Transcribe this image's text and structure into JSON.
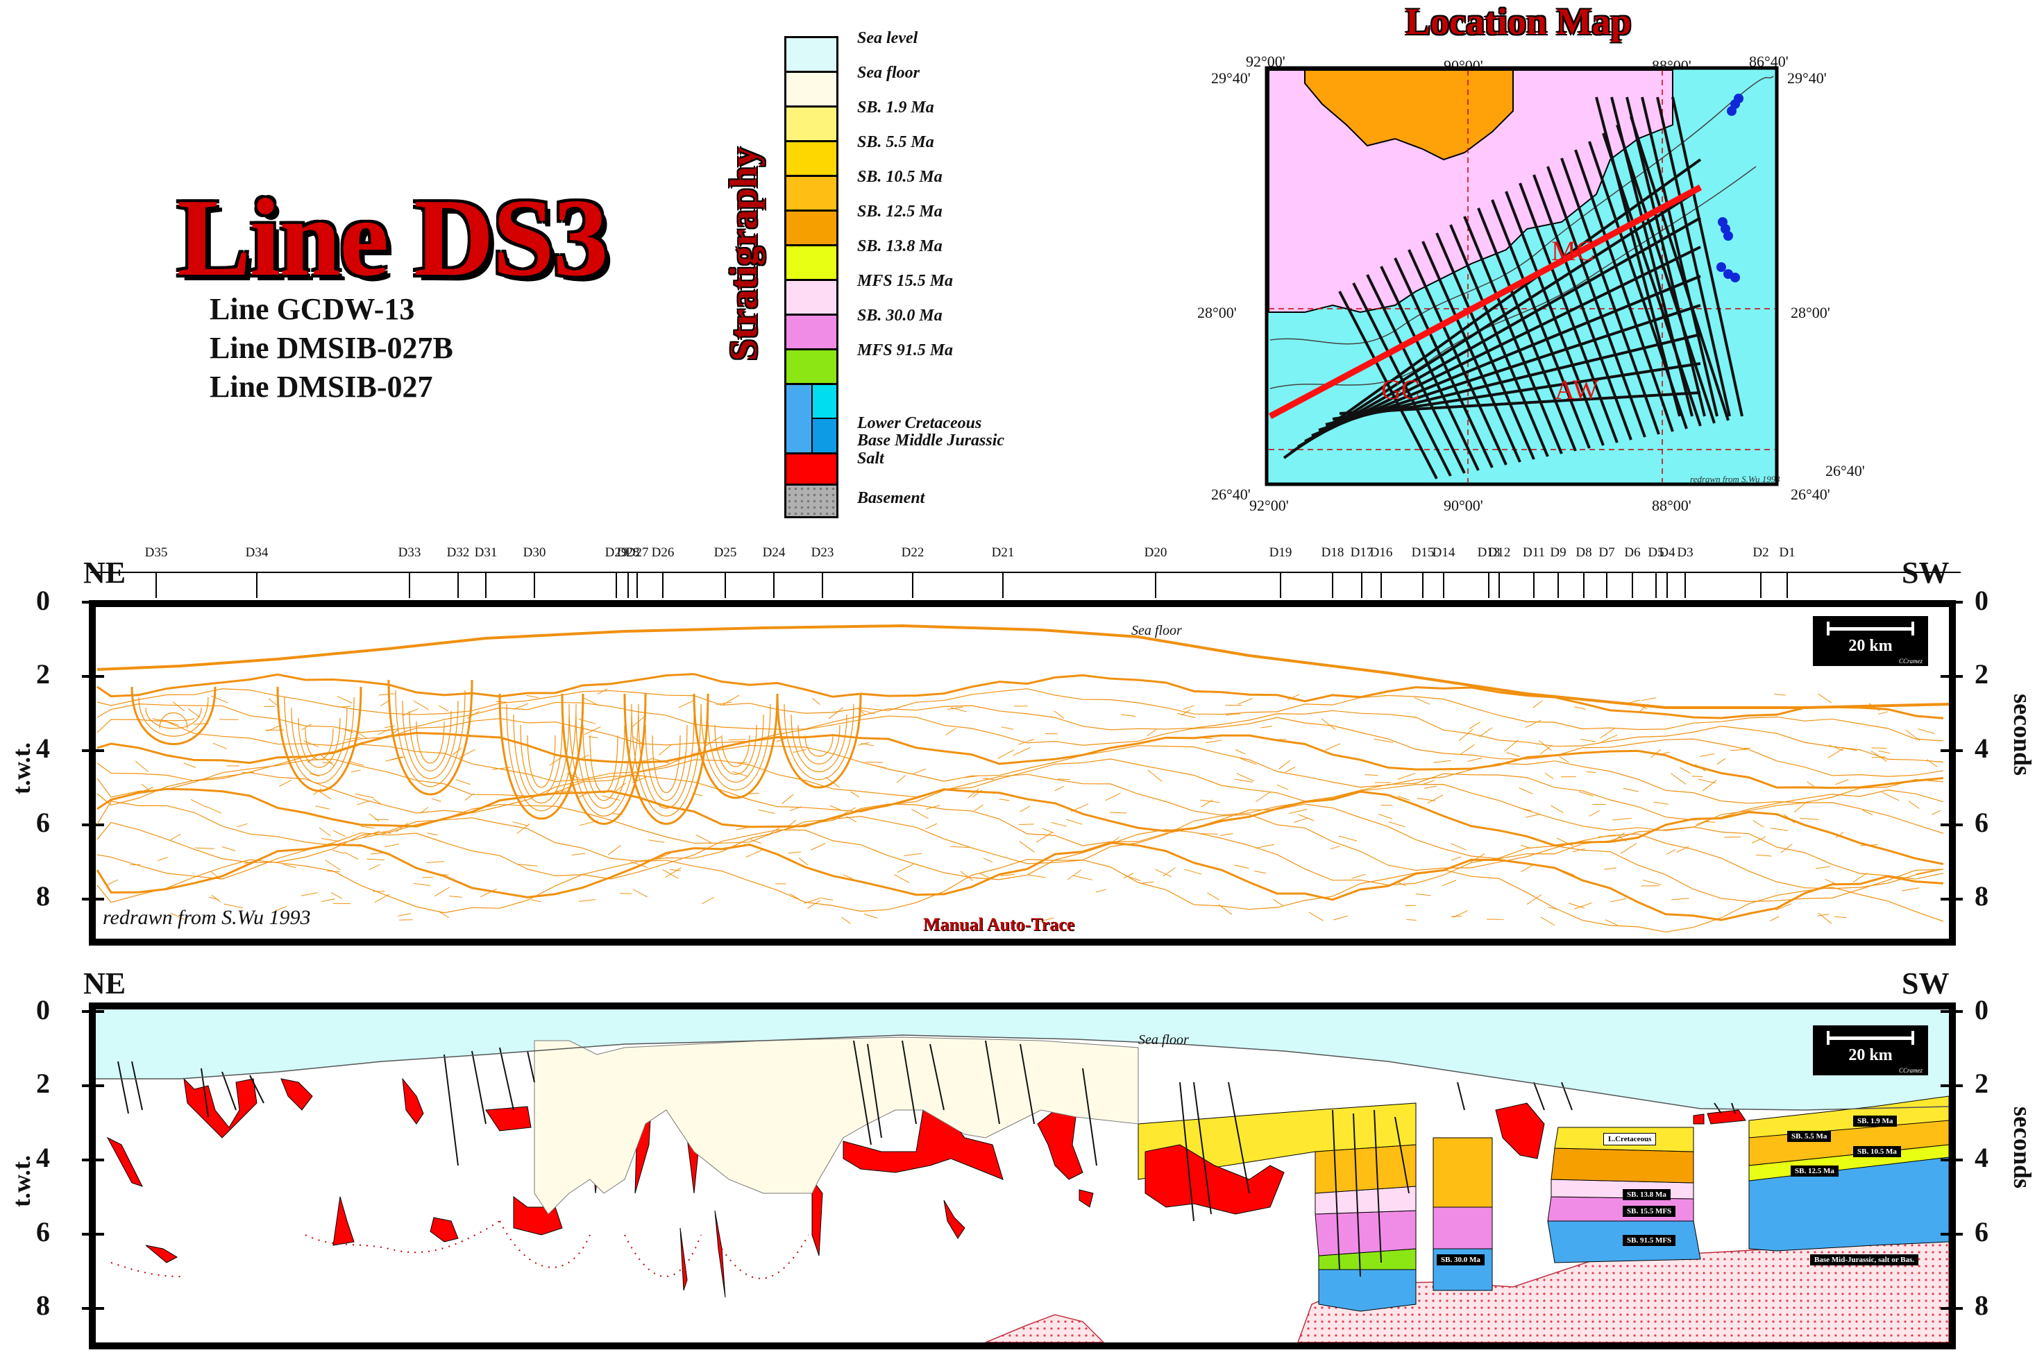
{
  "title": "Line DS3",
  "sublines": [
    "Line GCDW-13",
    "Line DMSIB-027B",
    "Line DMSIB-027"
  ],
  "stratigraphy": {
    "title": "Stratigraphy",
    "items": [
      {
        "label": "Sea level",
        "color": "#ddfafa"
      },
      {
        "label": "Sea floor",
        "color": "#fffbe6"
      },
      {
        "label": "SB. 1.9 Ma",
        "color": "#fff47a"
      },
      {
        "label": "SB. 5.5 Ma",
        "color": "#ffd700"
      },
      {
        "label": "SB. 10.5 Ma",
        "color": "#ffbe14"
      },
      {
        "label": "SB. 12.5 Ma",
        "color": "#f5a000"
      },
      {
        "label": "SB. 13.8 Ma",
        "color": "#e8ff14"
      },
      {
        "label": "MFS 15.5 Ma",
        "color": "#ffdcf5"
      },
      {
        "label": "SB. 30.0 Ma",
        "color": "#f08ce6"
      },
      {
        "label": "MFS 91.5 Ma",
        "color": "#8ce614"
      },
      {
        "label": "Lower Cretaceous",
        "color": "#00dcf0"
      },
      {
        "label": "Base Middle Jurassic",
        "color": "#46aaf0"
      },
      {
        "label": "Salt",
        "color": "#ff0000"
      },
      {
        "label": "Basement",
        "color": "#a0a0a0"
      }
    ]
  },
  "location_map": {
    "title": "Location Map",
    "coords": {
      "tl_lon": "92°00'",
      "tl_lat": "29°40'",
      "top_mid_lon": "90°00'",
      "top_right_lon": "88°00'",
      "tr_lon": "86°40'",
      "tr_lat": "29°40'",
      "mid_left_lat": "28°00'",
      "mid_right_lat": "28°00'",
      "br_lat_top": "26°40'",
      "bl_lat": "26°40'",
      "bl_lon": "92°00'",
      "bottom_mid_lon": "90°00'",
      "bottom_right_lon": "88°00'",
      "br_lat": "26°40'"
    },
    "labels": {
      "gc": "GC",
      "mc": "MC",
      "aw": "AW"
    },
    "credit": "redrawn from S.Wu 1993",
    "colors": {
      "land": "#ffc8ff",
      "sea": "#7df3f5",
      "coast": "#ffa20a",
      "line": "#ff1010"
    }
  },
  "wells": [
    "D35",
    "D34",
    "D33",
    "D32",
    "D31",
    "D30",
    "D29",
    "D28",
    "D27",
    "D26",
    "D25",
    "D24",
    "D23",
    "D22",
    "D21",
    "D20",
    "D19",
    "D18",
    "D17",
    "D16",
    "D15",
    "D14",
    "D13",
    "D12",
    "D11",
    "D9",
    "D8",
    "D7",
    "D6",
    "D5",
    "D4",
    "D3",
    "D2",
    "D1"
  ],
  "section_top": {
    "left_label": "NE",
    "right_label": "SW",
    "y_title_left": "t.w.t.",
    "y_title_right": "seconds",
    "ticks": [
      "0",
      "2",
      "4",
      "6",
      "8"
    ],
    "sea_floor_label": "Sea floor",
    "credit": "redrawn from S.Wu 1993",
    "method": "Manual Auto-Trace",
    "scale": "20 km",
    "scale_credit": "CCramez",
    "trace_color": "#f0900f"
  },
  "section_bottom": {
    "left_label": "NE",
    "right_label": "SW",
    "y_title_left": "t.w.t.",
    "y_title_right": "seconds",
    "ticks": [
      "0",
      "2",
      "4",
      "6",
      "8"
    ],
    "sea_floor_label": "Sea floor",
    "scale": "20 km",
    "scale_credit": "CCramez",
    "tags": [
      "L.Cretaceous",
      "SB. 1.9 Ma",
      "SB. 5.5 Ma",
      "SB. 10.5 Ma",
      "SB. 12.5 Ma",
      "SB. 13.8 Ma",
      "SB. 15.5 MFS",
      "SB. 91.5 MFS",
      "SB. 30.0 Ma",
      "Base Mid-Jurassic, salt or Bas."
    ]
  }
}
